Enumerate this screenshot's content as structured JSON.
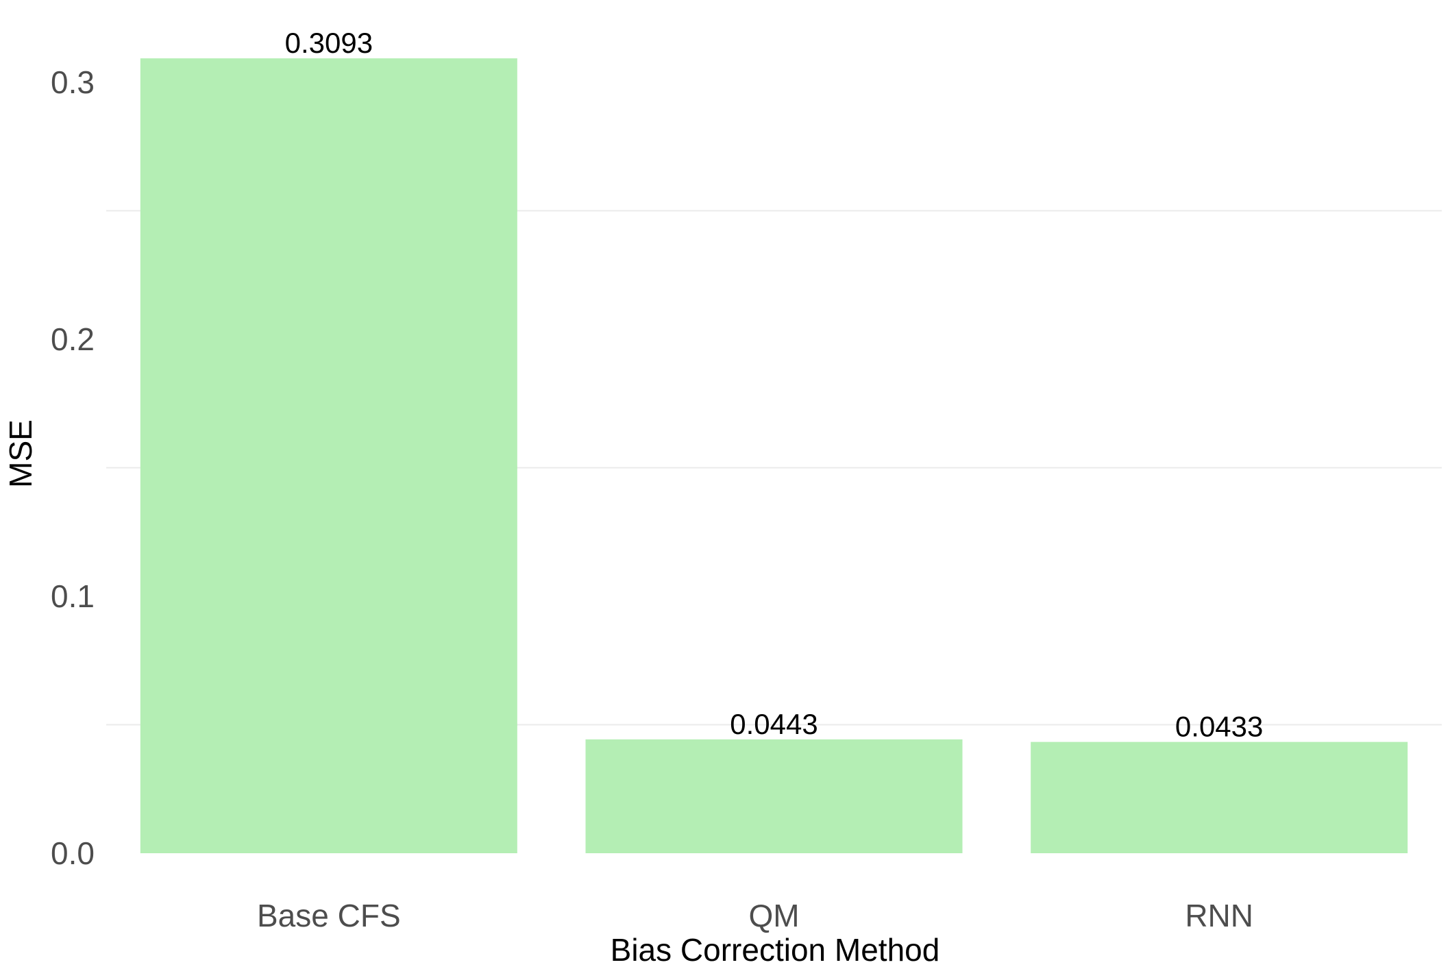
{
  "chart_data": {
    "type": "bar",
    "categories": [
      "Base CFS",
      "QM",
      "RNN"
    ],
    "values": [
      0.3093,
      0.0443,
      0.0433
    ],
    "data_labels": [
      "0.3093",
      "0.0443",
      "0.0433"
    ],
    "title": "",
    "xlabel": "Bias Correction Method",
    "ylabel": "MSE",
    "ylim": [
      0,
      0.32
    ],
    "yticks": [
      0.0,
      0.1,
      0.2,
      0.3
    ],
    "ytick_labels": [
      "0.0",
      "0.1",
      "0.2",
      "0.3"
    ],
    "grid": true,
    "legend": "none",
    "bar_color": "#b4eeb4",
    "grid_color": "#ebebeb"
  }
}
